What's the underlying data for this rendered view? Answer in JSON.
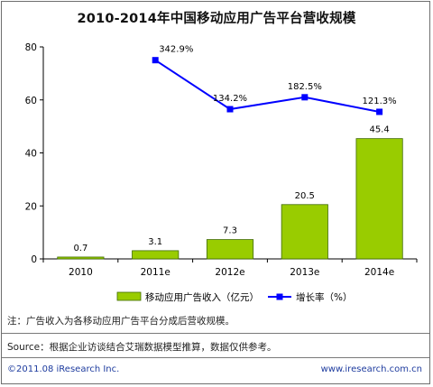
{
  "title": "2010-2014年中国移动应用广告平台营收规模",
  "chart_data": {
    "type": "bar",
    "categories": [
      "2010",
      "2011e",
      "2012e",
      "2013e",
      "2014e"
    ],
    "series": [
      {
        "name": "移动应用广告收入（亿元）",
        "kind": "bar",
        "axis": "left",
        "values": [
          0.7,
          3.1,
          7.3,
          20.5,
          45.4
        ],
        "labels": [
          "0.7",
          "3.1",
          "7.3",
          "20.5",
          "45.4"
        ],
        "color": "#99cc00"
      },
      {
        "name": "增长率（%）",
        "kind": "line",
        "axis": "left",
        "values": [
          null,
          342.9,
          134.2,
          182.5,
          121.3
        ],
        "labels": [
          "",
          "342.9%",
          "134.2%",
          "182.5%",
          "121.3%"
        ],
        "color": "#0000ff"
      }
    ],
    "y_ticks": [
      "0",
      "20",
      "40",
      "60",
      "80"
    ],
    "ylim": [
      0,
      80
    ],
    "legend_position": "bottom",
    "grid": false
  },
  "note": "注：广告收入为各移动应用广告平台分成后营收规模。",
  "source": "Source：根据企业访谈结合艾瑞数据模型推算，数据仅供参考。",
  "copyright": "©2011.08 iResearch Inc.",
  "website": "www.iresearch.com.cn"
}
